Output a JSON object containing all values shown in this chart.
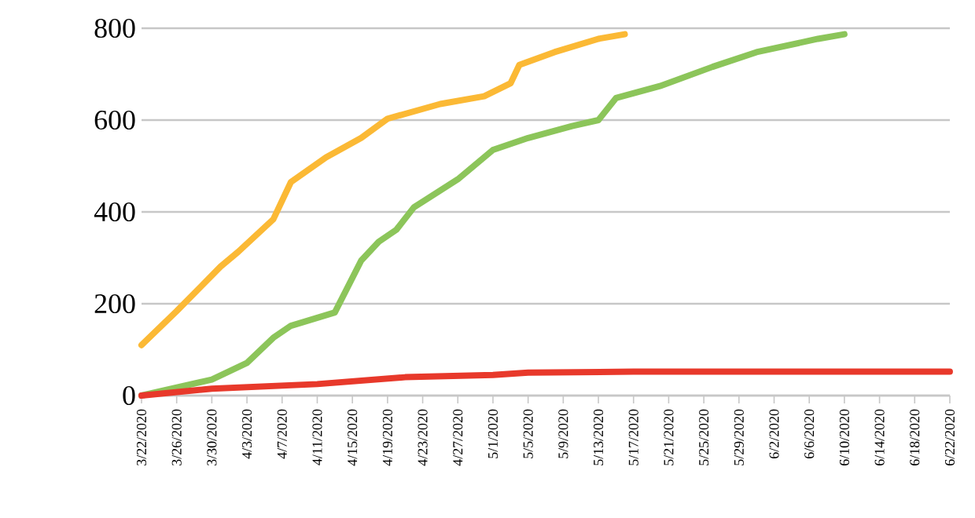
{
  "chart_data": {
    "type": "line",
    "xlim": [
      "2020-03-22",
      "2020-06-22"
    ],
    "ylim": [
      0,
      800
    ],
    "yticks": [
      0,
      200,
      400,
      600,
      800
    ],
    "xticks": [
      {
        "value": "2020-03-22",
        "label": "3/22/2020"
      },
      {
        "value": "2020-03-26",
        "label": "3/26/2020"
      },
      {
        "value": "2020-03-30",
        "label": "3/30/2020"
      },
      {
        "value": "2020-04-03",
        "label": "4/3/2020"
      },
      {
        "value": "2020-04-07",
        "label": "4/7/2020"
      },
      {
        "value": "2020-04-11",
        "label": "4/11/2020"
      },
      {
        "value": "2020-04-15",
        "label": "4/15/2020"
      },
      {
        "value": "2020-04-19",
        "label": "4/19/2020"
      },
      {
        "value": "2020-04-23",
        "label": "4/23/2020"
      },
      {
        "value": "2020-04-27",
        "label": "4/27/2020"
      },
      {
        "value": "2020-05-01",
        "label": "5/1/2020"
      },
      {
        "value": "2020-05-05",
        "label": "5/5/2020"
      },
      {
        "value": "2020-05-09",
        "label": "5/9/2020"
      },
      {
        "value": "2020-05-13",
        "label": "5/13/2020"
      },
      {
        "value": "2020-05-17",
        "label": "5/17/2020"
      },
      {
        "value": "2020-05-21",
        "label": "5/21/2020"
      },
      {
        "value": "2020-05-25",
        "label": "5/25/2020"
      },
      {
        "value": "2020-05-29",
        "label": "5/29/2020"
      },
      {
        "value": "2020-06-02",
        "label": "6/2/2020"
      },
      {
        "value": "2020-06-06",
        "label": "6/6/2020"
      },
      {
        "value": "2020-06-10",
        "label": "6/10/2020"
      },
      {
        "value": "2020-06-14",
        "label": "6/14/2020"
      },
      {
        "value": "2020-06-18",
        "label": "6/18/2020"
      },
      {
        "value": "2020-06-22",
        "label": "6/22/2020"
      }
    ],
    "grid": "y",
    "marker": "none",
    "line_style": "solid",
    "series": [
      {
        "color": "#fbb935",
        "x": [
          "2020-03-22",
          "2020-03-26",
          "2020-03-31",
          "2020-04-02",
          "2020-04-06",
          "2020-04-08",
          "2020-04-12",
          "2020-04-16",
          "2020-04-19",
          "2020-04-25",
          "2020-04-30",
          "2020-05-03",
          "2020-05-04",
          "2020-05-08",
          "2020-05-13",
          "2020-05-16"
        ],
        "values": [
          110,
          184,
          281,
          313,
          384,
          465,
          519,
          561,
          603,
          635,
          652,
          680,
          720,
          748,
          777,
          787
        ]
      },
      {
        "color": "#8cc55a",
        "x": [
          "2020-03-22",
          "2020-03-30",
          "2020-04-03",
          "2020-04-06",
          "2020-04-08",
          "2020-04-13",
          "2020-04-16",
          "2020-04-18",
          "2020-04-20",
          "2020-04-22",
          "2020-04-27",
          "2020-05-01",
          "2020-05-05",
          "2020-05-10",
          "2020-05-13",
          "2020-05-15",
          "2020-05-20",
          "2020-05-26",
          "2020-05-31",
          "2020-06-07",
          "2020-06-10"
        ],
        "values": [
          0,
          35,
          71,
          126,
          152,
          181,
          294,
          335,
          361,
          410,
          471,
          535,
          561,
          587,
          600,
          648,
          674,
          716,
          748,
          777,
          787
        ]
      },
      {
        "color": "#e8392b",
        "x": [
          "2020-03-22",
          "2020-03-30",
          "2020-04-11",
          "2020-04-21",
          "2020-05-01",
          "2020-05-05",
          "2020-05-17",
          "2020-06-22"
        ],
        "values": [
          0,
          15,
          25,
          40,
          45,
          50,
          52,
          52
        ]
      }
    ]
  }
}
